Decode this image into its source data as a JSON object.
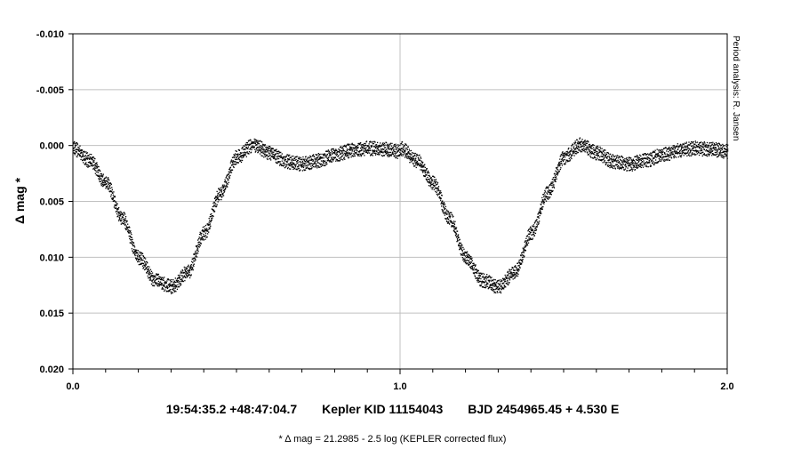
{
  "chart_data": {
    "type": "scatter",
    "title": "",
    "ylabel": "Δ mag *",
    "xlabel": "",
    "xlim": [
      0.0,
      2.0
    ],
    "ylim": [
      -0.01,
      0.02
    ],
    "y_inverted": true,
    "grid": true,
    "x_ticks": [
      0.0,
      1.0,
      2.0
    ],
    "x_tick_labels": [
      "0.0",
      "1.0",
      "2.0"
    ],
    "y_ticks": [
      -0.01,
      -0.005,
      0.0,
      0.005,
      0.01,
      0.015,
      0.02
    ],
    "y_tick_labels": [
      "-0.010",
      "-0.005",
      "0.000",
      "0.005",
      "0.010",
      "0.015",
      "0.020"
    ],
    "series": [
      {
        "x": [
          0.0,
          0.05,
          0.1,
          0.15,
          0.2,
          0.25,
          0.3,
          0.35,
          0.4,
          0.45,
          0.5,
          0.55,
          0.6,
          0.65,
          0.7,
          0.75,
          0.8,
          0.85,
          0.9,
          0.95,
          1.0
        ],
        "y": [
          0.0002,
          0.0013,
          0.0033,
          0.0065,
          0.01,
          0.012,
          0.0126,
          0.0113,
          0.0078,
          0.0042,
          0.001,
          -0.0001,
          0.0006,
          0.0014,
          0.0016,
          0.0013,
          0.0008,
          0.0004,
          0.0002,
          0.0003,
          0.0005
        ]
      }
    ],
    "marker_color": "#000000",
    "scatter_spread": 0.0008
  },
  "credit": "Period analysis: R. Jansen",
  "info": {
    "coords": "19:54:35.2 +48:47:04.7",
    "target": "Kepler KID 11154043",
    "ephemeris": "BJD 2454965.45 + 4.530 E"
  },
  "footnote": "* Δ mag = 21.2985 - 2.5 log (KEPLER corrected flux)"
}
